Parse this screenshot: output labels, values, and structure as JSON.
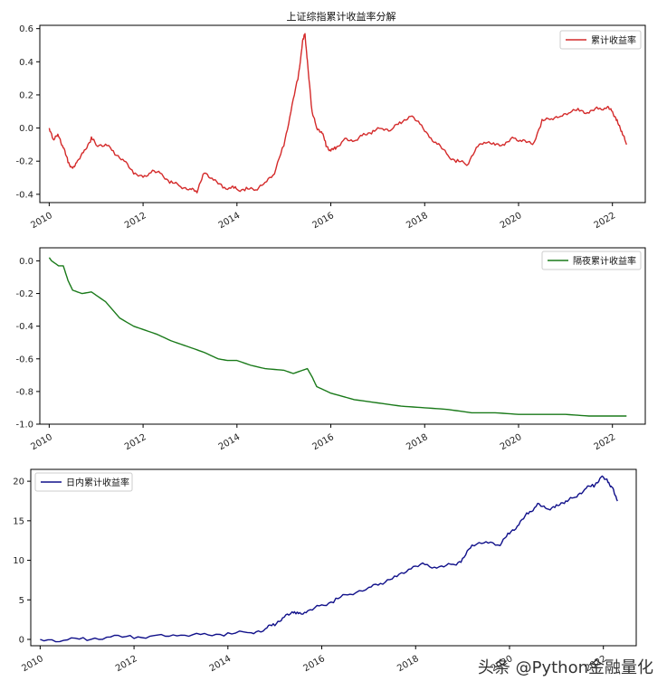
{
  "chart_data": [
    {
      "type": "line",
      "title": "上证综指累计收益率分解",
      "xlabel": "",
      "ylabel": "",
      "xlim": [
        2009.8,
        2022.7
      ],
      "ylim": [
        -0.45,
        0.62
      ],
      "x_ticks": [
        "2010",
        "2012",
        "2014",
        "2016",
        "2018",
        "2020",
        "2022"
      ],
      "y_ticks": [
        "0.6",
        "0.4",
        "0.2",
        "0.0",
        "-0.2",
        "-0.4"
      ],
      "legend_position": "upper-right",
      "color": "#d42a2a",
      "series": [
        {
          "name": "累计收益率",
          "x": [
            2010.0,
            2010.1,
            2010.2,
            2010.3,
            2010.4,
            2010.5,
            2010.6,
            2010.75,
            2010.9,
            2011.0,
            2011.2,
            2011.4,
            2011.6,
            2011.8,
            2012.0,
            2012.2,
            2012.4,
            2012.6,
            2012.8,
            2013.0,
            2013.15,
            2013.3,
            2013.5,
            2013.7,
            2013.9,
            2014.0,
            2014.2,
            2014.4,
            2014.6,
            2014.8,
            2015.0,
            2015.15,
            2015.3,
            2015.4,
            2015.45,
            2015.5,
            2015.6,
            2015.7,
            2015.8,
            2015.9,
            2016.0,
            2016.1,
            2016.3,
            2016.5,
            2016.7,
            2016.9,
            2017.1,
            2017.3,
            2017.5,
            2017.7,
            2017.9,
            2018.1,
            2018.3,
            2018.5,
            2018.7,
            2018.9,
            2019.1,
            2019.3,
            2019.5,
            2019.7,
            2019.9,
            2020.1,
            2020.3,
            2020.5,
            2020.7,
            2020.9,
            2021.1,
            2021.3,
            2021.5,
            2021.7,
            2021.9,
            2022.0,
            2022.1,
            2022.2,
            2022.3
          ],
          "y": [
            0.0,
            -0.07,
            -0.04,
            -0.12,
            -0.2,
            -0.25,
            -0.2,
            -0.14,
            -0.06,
            -0.1,
            -0.1,
            -0.15,
            -0.2,
            -0.27,
            -0.3,
            -0.26,
            -0.28,
            -0.33,
            -0.35,
            -0.37,
            -0.38,
            -0.27,
            -0.31,
            -0.36,
            -0.36,
            -0.37,
            -0.37,
            -0.37,
            -0.33,
            -0.27,
            -0.1,
            0.1,
            0.3,
            0.52,
            0.57,
            0.4,
            0.1,
            0.0,
            -0.02,
            -0.1,
            -0.14,
            -0.12,
            -0.07,
            -0.08,
            -0.04,
            -0.02,
            0.0,
            -0.01,
            0.04,
            0.07,
            0.03,
            -0.06,
            -0.1,
            -0.17,
            -0.2,
            -0.22,
            -0.12,
            -0.08,
            -0.1,
            -0.1,
            -0.06,
            -0.08,
            -0.1,
            0.04,
            0.06,
            0.07,
            0.1,
            0.11,
            0.09,
            0.12,
            0.12,
            0.1,
            0.04,
            -0.02,
            -0.1
          ]
        }
      ]
    },
    {
      "type": "line",
      "title": "",
      "xlabel": "",
      "ylabel": "",
      "xlim": [
        2009.8,
        2022.7
      ],
      "ylim": [
        -1.0,
        0.08
      ],
      "x_ticks": [
        "2010",
        "2012",
        "2014",
        "2016",
        "2018",
        "2020",
        "2022"
      ],
      "y_ticks": [
        "0.0",
        "-0.2",
        "-0.4",
        "-0.6",
        "-0.8",
        "-1.0"
      ],
      "legend_position": "upper-right",
      "color": "#1a7a1a",
      "series": [
        {
          "name": "隔夜累计收益率",
          "x": [
            2010.0,
            2010.05,
            2010.2,
            2010.3,
            2010.4,
            2010.5,
            2010.7,
            2010.9,
            2011.2,
            2011.5,
            2011.8,
            2012.0,
            2012.3,
            2012.6,
            2013.0,
            2013.3,
            2013.6,
            2013.8,
            2014.0,
            2014.3,
            2014.6,
            2015.0,
            2015.2,
            2015.4,
            2015.5,
            2015.6,
            2015.7,
            2016.0,
            2016.5,
            2017.0,
            2017.5,
            2018.0,
            2018.5,
            2019.0,
            2019.5,
            2020.0,
            2020.5,
            2021.0,
            2021.5,
            2022.0,
            2022.3
          ],
          "y": [
            0.02,
            0.0,
            -0.03,
            -0.03,
            -0.12,
            -0.18,
            -0.2,
            -0.19,
            -0.25,
            -0.35,
            -0.4,
            -0.42,
            -0.45,
            -0.49,
            -0.53,
            -0.56,
            -0.6,
            -0.61,
            -0.61,
            -0.64,
            -0.66,
            -0.67,
            -0.69,
            -0.67,
            -0.66,
            -0.71,
            -0.77,
            -0.81,
            -0.85,
            -0.87,
            -0.89,
            -0.9,
            -0.91,
            -0.93,
            -0.93,
            -0.94,
            -0.94,
            -0.94,
            -0.95,
            -0.95,
            -0.95
          ]
        }
      ]
    },
    {
      "type": "line",
      "title": "",
      "xlabel": "",
      "ylabel": "",
      "xlim": [
        2009.8,
        2022.7
      ],
      "ylim": [
        -0.8,
        21.5
      ],
      "x_ticks": [
        "2010",
        "2012",
        "2014",
        "2016",
        "2018",
        "2020",
        "2022"
      ],
      "y_ticks": [
        "20",
        "15",
        "10",
        "5",
        "0"
      ],
      "legend_position": "upper-left",
      "color": "#10108a",
      "series": [
        {
          "name": "日内累计收益率",
          "x": [
            2010.0,
            2010.5,
            2011.0,
            2011.5,
            2012.0,
            2012.5,
            2013.0,
            2013.5,
            2014.0,
            2014.5,
            2014.8,
            2015.0,
            2015.2,
            2015.4,
            2015.5,
            2015.7,
            2016.0,
            2016.3,
            2016.6,
            2017.0,
            2017.3,
            2017.6,
            2017.9,
            2018.2,
            2018.5,
            2018.8,
            2019.0,
            2019.2,
            2019.5,
            2019.8,
            2020.0,
            2020.2,
            2020.4,
            2020.6,
            2020.8,
            2021.0,
            2021.2,
            2021.4,
            2021.6,
            2021.8,
            2021.95,
            2022.1,
            2022.2,
            2022.3
          ],
          "y": [
            0.0,
            -0.1,
            0.1,
            0.3,
            0.3,
            0.4,
            0.5,
            0.6,
            0.7,
            0.9,
            1.3,
            2.0,
            2.8,
            3.5,
            3.2,
            3.5,
            4.3,
            5.0,
            5.8,
            6.5,
            7.2,
            8.0,
            9.0,
            9.5,
            9.0,
            9.5,
            10.0,
            12.0,
            12.3,
            12.0,
            13.5,
            14.5,
            16.0,
            17.0,
            16.5,
            16.8,
            17.5,
            18.0,
            19.0,
            19.5,
            20.5,
            20.0,
            19.0,
            17.5
          ]
        }
      ]
    }
  ],
  "watermark": {
    "text": "头条 @Python金融量化"
  }
}
